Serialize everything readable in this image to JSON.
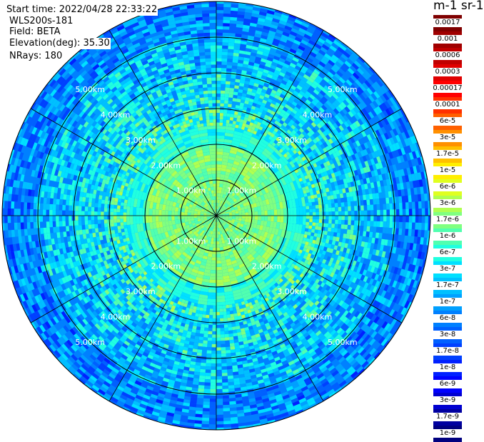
{
  "header": {
    "start_time": "Start time: 2022/04/28 22:33:22",
    "instrument": "WLS200s-181",
    "field": "Field: BETA",
    "elevation": "Elevation(deg): 35.30",
    "nrays": "NRays: 180"
  },
  "colorbar": {
    "units": "m-1 sr-1",
    "labels": [
      "0.0017",
      "0.001",
      "0.0006",
      "0.0003",
      "0.00017",
      "0.0001",
      "6e-5",
      "3e-5",
      "1.7e-5",
      "1e-5",
      "6e-6",
      "3e-6",
      "1.7e-6",
      "1e-6",
      "6e-7",
      "3e-7",
      "1.7e-7",
      "1e-7",
      "6e-8",
      "3e-8",
      "1.7e-8",
      "1e-8",
      "6e-9",
      "3e-9",
      "1.7e-9",
      "1e-9"
    ],
    "colors": [
      "#7f0000",
      "#a00000",
      "#c00000",
      "#e00000",
      "#ff0000",
      "#ff3000",
      "#ff6000",
      "#ff9000",
      "#ffc000",
      "#ffee00",
      "#e0ff20",
      "#b0ff50",
      "#80ff80",
      "#50ffb0",
      "#20ffe0",
      "#00e0ff",
      "#00c0ff",
      "#00a0ff",
      "#0080ff",
      "#0060ff",
      "#0040ff",
      "#0020ff",
      "#0000ff",
      "#0000d0",
      "#0000a0",
      "#00007f"
    ]
  },
  "chart_data": {
    "type": "heatmap",
    "projection": "polar PPI",
    "field": "BETA",
    "elevation_deg": 35.3,
    "nrays": 180,
    "range_rings_km": [
      1.0,
      2.0,
      3.0,
      4.0,
      5.0
    ],
    "ring_labels": [
      "1.00km",
      "2.00km",
      "3.00km",
      "4.00km",
      "5.00km"
    ],
    "max_range_km": 6.0,
    "azimuth_spokes_deg": [
      0,
      30,
      60,
      90,
      120,
      150,
      180,
      210,
      240,
      270,
      300,
      330
    ],
    "value_by_range": [
      {
        "range_km": [
          0.0,
          1.0
        ],
        "beta": "1.7e-6"
      },
      {
        "range_km": [
          1.0,
          2.0
        ],
        "beta": "1.7e-6"
      },
      {
        "range_km": [
          2.0,
          3.0
        ],
        "beta": "6e-7"
      },
      {
        "range_km": [
          3.0,
          4.0
        ],
        "beta": "3e-7"
      },
      {
        "range_km": [
          4.0,
          5.0
        ],
        "beta": "1.7e-7"
      },
      {
        "range_km": [
          5.0,
          6.0
        ],
        "beta": "6e-8"
      }
    ]
  }
}
